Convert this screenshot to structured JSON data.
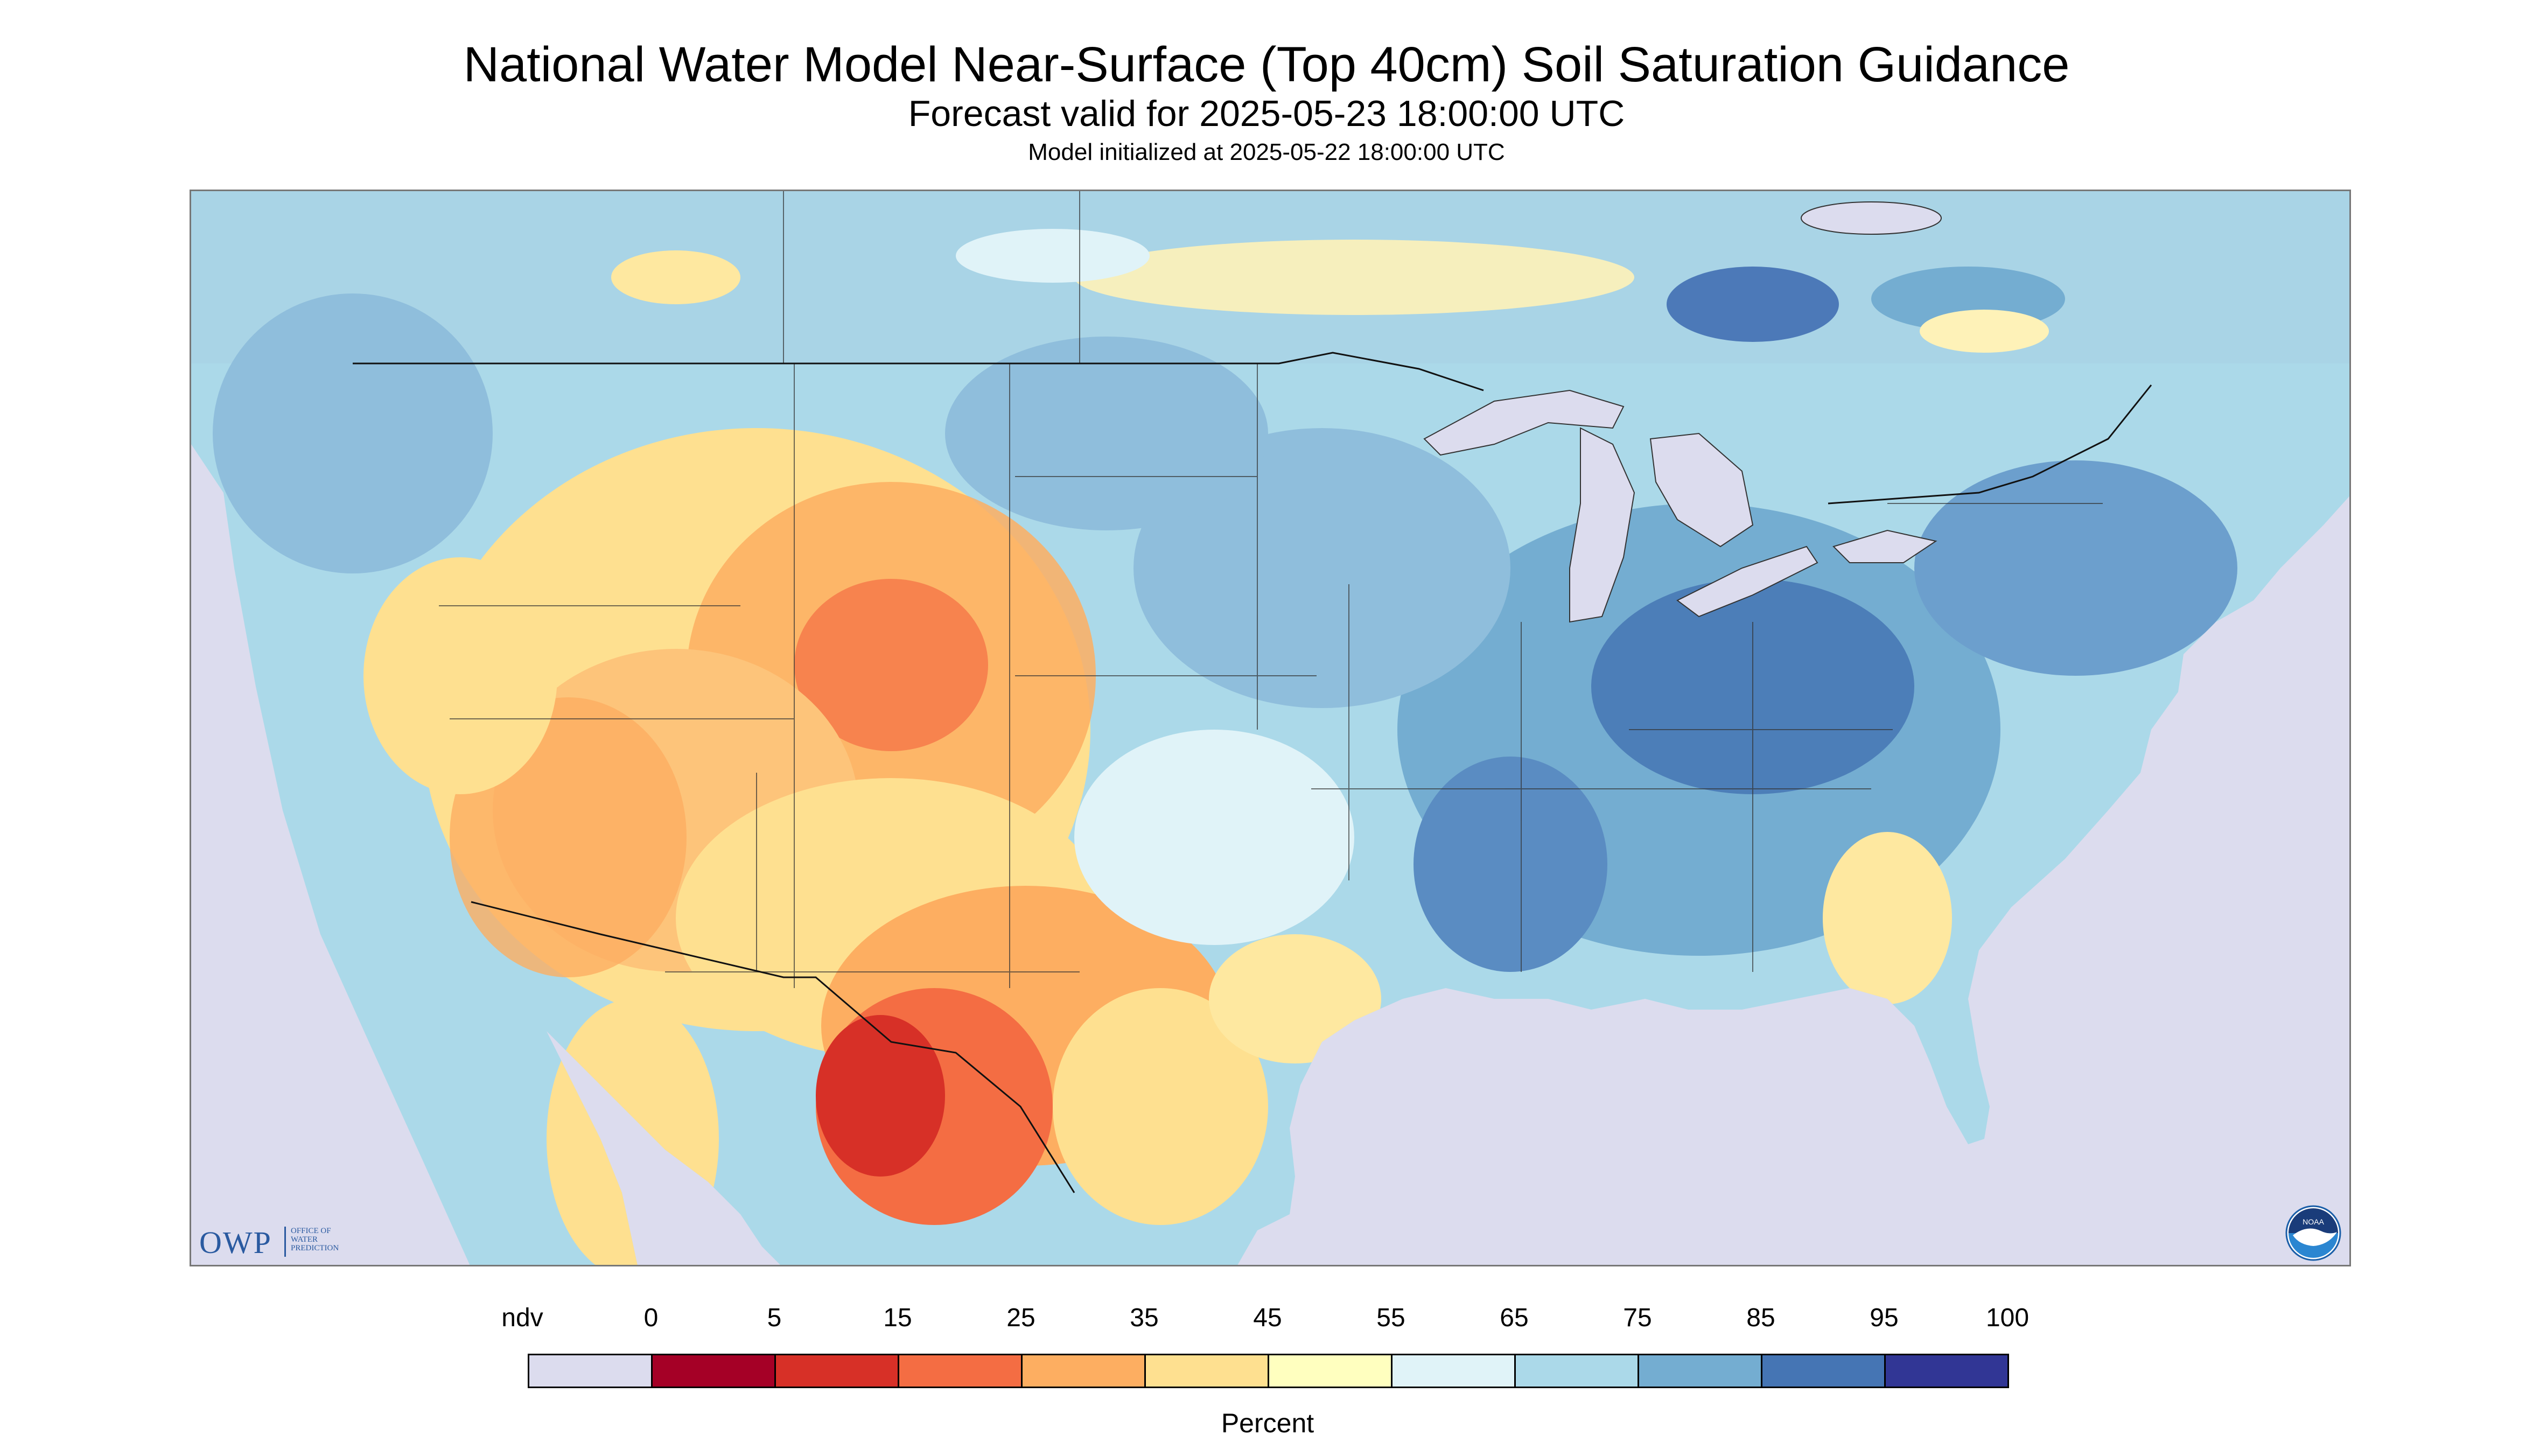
{
  "header": {
    "title": "National Water Model Near-Surface (Top 40cm) Soil Saturation Guidance",
    "subtitle": "Forecast valid for 2025-05-23 18:00:00 UTC",
    "init_line": "Model initialized at 2025-05-22 18:00:00 UTC"
  },
  "logos": {
    "owp_letters": "OWP",
    "owp_text_1": "OFFICE OF",
    "owp_text_2": "WATER",
    "owp_text_3": "PREDICTION",
    "noaa_text": "NOAA"
  },
  "legend": {
    "labels": [
      "ndv",
      "0",
      "5",
      "15",
      "25",
      "35",
      "45",
      "55",
      "65",
      "75",
      "85",
      "95",
      "100"
    ],
    "colors": [
      "#dcdcee",
      "#a50026",
      "#d73027",
      "#f46d43",
      "#fdae61",
      "#fee090",
      "#ffffbf",
      "#e0f3f8",
      "#abd9e9",
      "#74add1",
      "#4575b4",
      "#313695"
    ],
    "unit": "Percent"
  },
  "map": {
    "ndv_color": "#dcdcee",
    "water_color": "#dcdcee",
    "boundary_color": "#333333"
  }
}
